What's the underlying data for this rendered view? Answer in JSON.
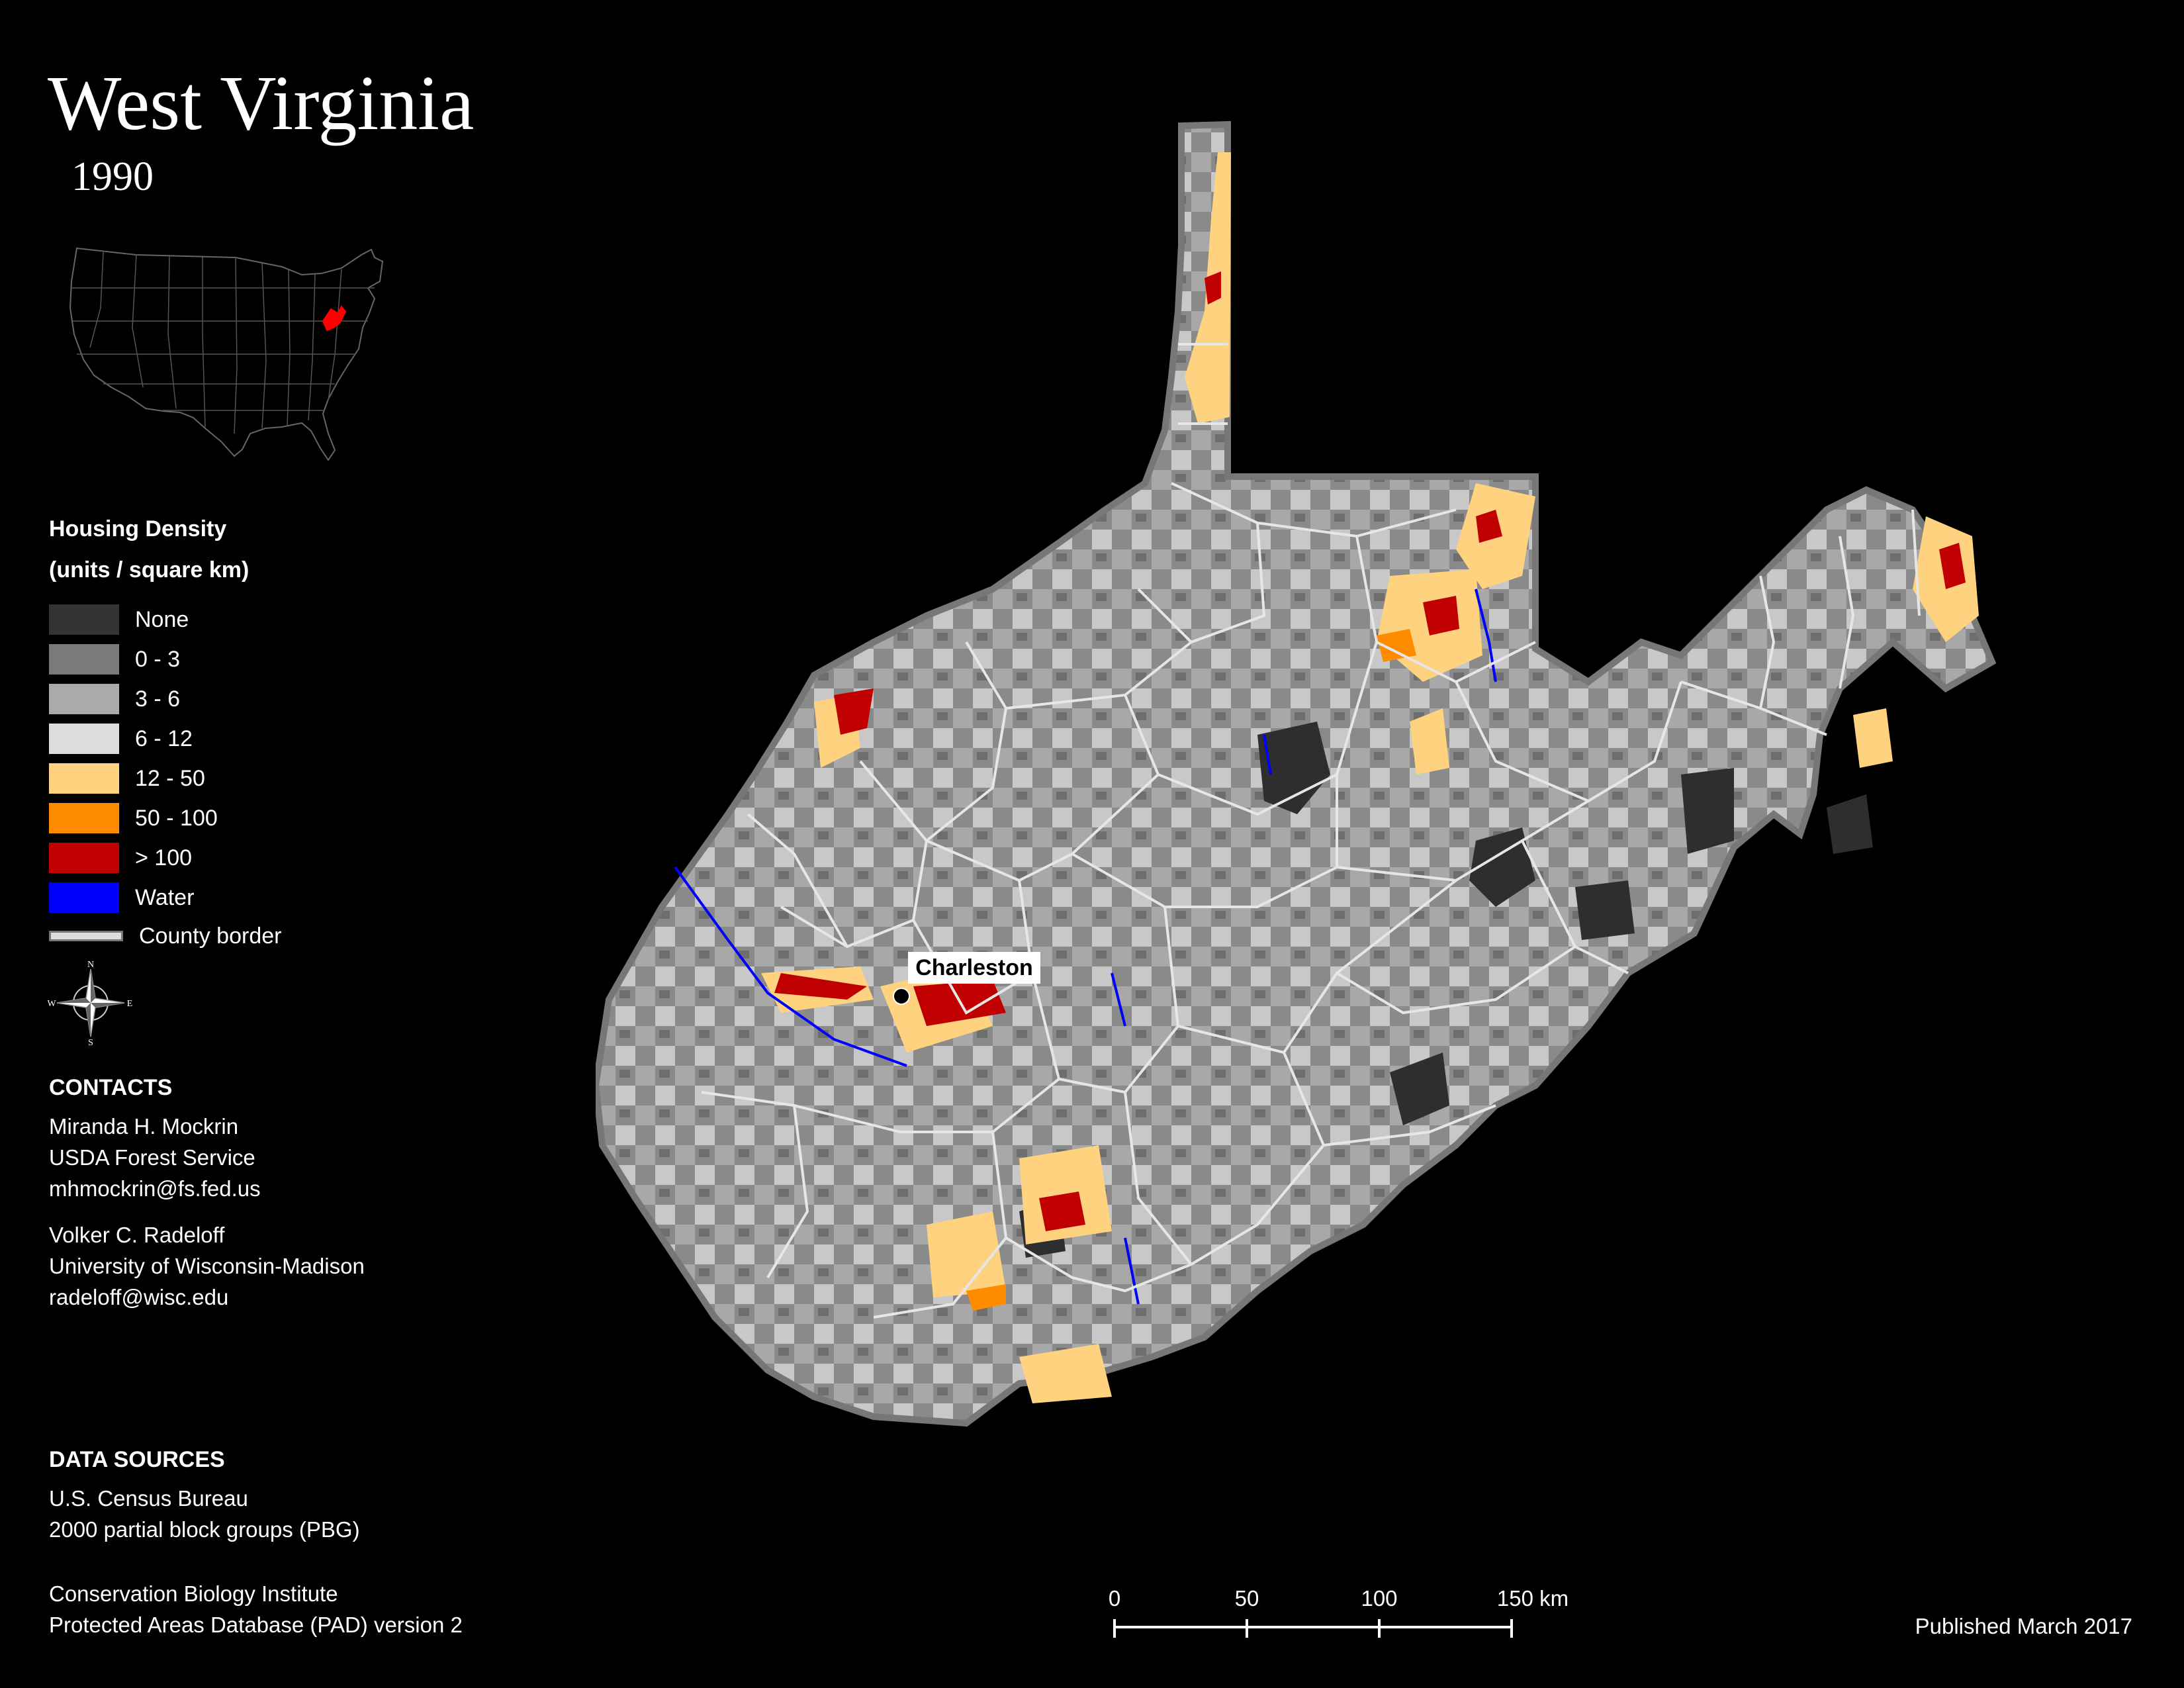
{
  "map": {
    "title": "West Virginia",
    "year": "1990",
    "city_label": "Charleston"
  },
  "legend": {
    "title_line1": "Housing Density",
    "title_line2": "(units / square km)",
    "items": [
      {
        "label": "None",
        "color": "#333333"
      },
      {
        "label": "0 - 3",
        "color": "#7a7a7a"
      },
      {
        "label": "3 - 6",
        "color": "#aaaaaa"
      },
      {
        "label": "6 - 12",
        "color": "#dcdcdc"
      },
      {
        "label": "12 - 50",
        "color": "#ffd27f"
      },
      {
        "label": "50 - 100",
        "color": "#ff8c00"
      },
      {
        "label": "> 100",
        "color": "#c00000"
      },
      {
        "label": "Water",
        "color": "#0000ff"
      }
    ],
    "county_border_label": "County border"
  },
  "compass": {
    "n": "N",
    "s": "S",
    "e": "E",
    "w": "W"
  },
  "contacts": {
    "heading": "CONTACTS",
    "person1": [
      "Miranda H. Mockrin",
      "USDA Forest Service",
      "mhmockrin@fs.fed.us"
    ],
    "person2": [
      "Volker C. Radeloff",
      "University of Wisconsin-Madison",
      "radeloff@wisc.edu"
    ]
  },
  "sources": {
    "heading": "DATA SOURCES",
    "source1": [
      "U.S. Census Bureau",
      "2000 partial block groups (PBG)"
    ],
    "source2": [
      "Conservation Biology Institute",
      "Protected Areas Database (PAD) version 2"
    ]
  },
  "scale": {
    "ticks": [
      "0",
      "50",
      "100",
      "150 km"
    ]
  },
  "published": "Published March 2017",
  "inset_highlight_color": "#ff0000"
}
